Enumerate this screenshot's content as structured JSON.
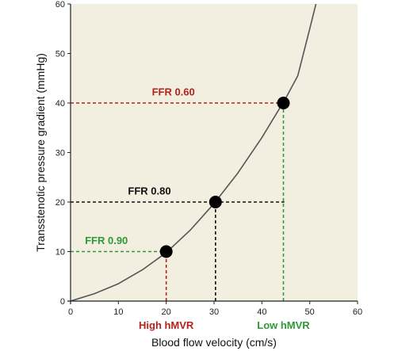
{
  "chart_data": {
    "type": "line",
    "title": "",
    "xlabel": "Blood flow velocity (cm/s)",
    "ylabel": "Transstenotic pressure gradient (mmHg)",
    "xlim": [
      0,
      60
    ],
    "ylim": [
      0,
      60
    ],
    "xticks": [
      0,
      10,
      20,
      30,
      40,
      50,
      60
    ],
    "yticks": [
      0,
      10,
      20,
      30,
      40,
      50,
      60
    ],
    "grid": false,
    "background": "#f3efe0",
    "curve": {
      "color": "#555555",
      "x": [
        0,
        5,
        10,
        15,
        20,
        25,
        30,
        35,
        40,
        45,
        47.5,
        50,
        51.3
      ],
      "y": [
        0,
        1.5,
        3.5,
        6.3,
        9.8,
        14.3,
        19.7,
        25.9,
        33.0,
        41.0,
        45.5,
        55.0,
        60.0
      ]
    },
    "points": [
      {
        "x": 20,
        "y": 10
      },
      {
        "x": 30.3,
        "y": 20
      },
      {
        "x": 44.5,
        "y": 40
      }
    ],
    "annotations": [
      {
        "label": "FFR 0.90",
        "color": "#2e9a35",
        "point": 0,
        "label_x": 3,
        "label_y": 11.5
      },
      {
        "label": "FFR 0.80",
        "color": "#111111",
        "point": 1,
        "label_x": 12,
        "label_y": 21.5
      },
      {
        "label": "FFR 0.60",
        "color": "#b5221c",
        "point": 2,
        "label_x": 17,
        "label_y": 41.5
      }
    ],
    "reference_lines": [
      {
        "axis": "y",
        "value": 10,
        "from": 0,
        "to": 20,
        "color": "#2e9a35"
      },
      {
        "axis": "x",
        "value": 20,
        "from": 0,
        "to": 10,
        "color": "#b5221c"
      },
      {
        "axis": "y",
        "value": 20,
        "from": 0,
        "to": 44.7,
        "color": "#111111"
      },
      {
        "axis": "x",
        "value": 30.3,
        "from": 0,
        "to": 20,
        "color": "#111111"
      },
      {
        "axis": "y",
        "value": 40,
        "from": 0,
        "to": 44.5,
        "color": "#b5221c"
      },
      {
        "axis": "x",
        "value": 44.5,
        "from": 0,
        "to": 40,
        "color": "#2e9a35"
      }
    ],
    "category_labels": [
      {
        "label": "High hMVR",
        "x": 20,
        "color": "#b5221c"
      },
      {
        "label": "Low hMVR",
        "x": 44.5,
        "color": "#2e9a35"
      }
    ]
  }
}
